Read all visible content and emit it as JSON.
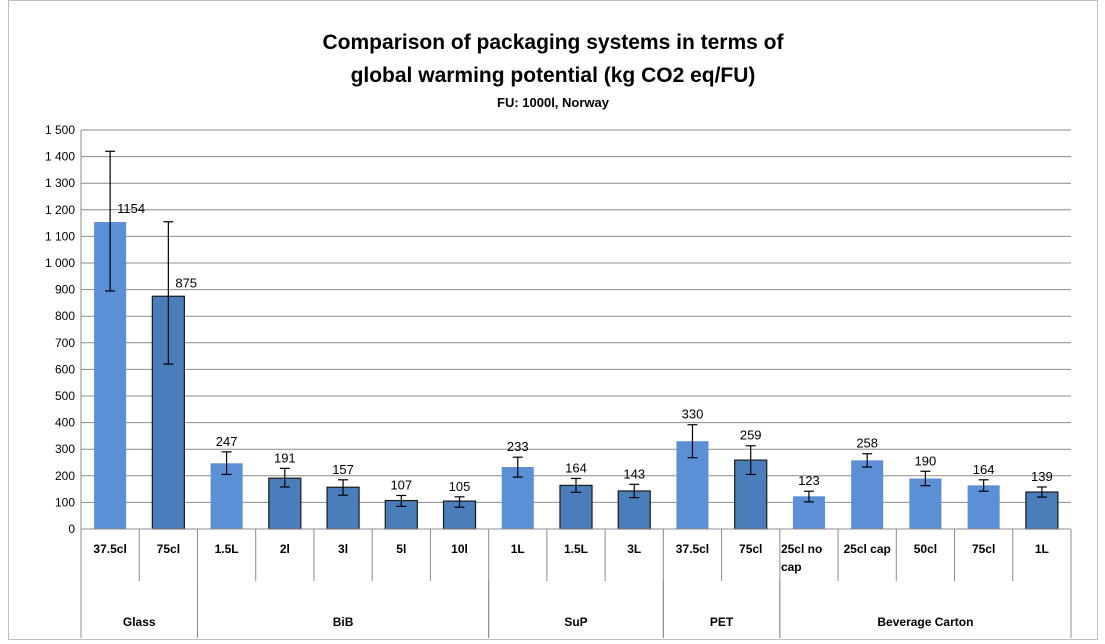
{
  "chart_data": {
    "type": "bar",
    "title_line1": "Comparison of packaging systems in terms of",
    "title_line2": "global warming potential (kg CO2 eq/FU)",
    "subtitle": "FU: 1000l,  Norway",
    "xlabel": "",
    "ylabel": "",
    "ylim": [
      0,
      1500
    ],
    "yticks": [
      0,
      100,
      200,
      300,
      400,
      500,
      600,
      700,
      800,
      900,
      1000,
      1100,
      1200,
      1300,
      1400,
      1500
    ],
    "ytick_labels": [
      "0",
      "100",
      "200",
      "300",
      "400",
      "500",
      "600",
      "700",
      "800",
      "900",
      "1 000",
      "1 100",
      "1 200",
      "1 300",
      "1 400",
      "1 500"
    ],
    "grid": true,
    "legend": "none",
    "colors": {
      "bar_light": "#5b8fd6",
      "bar_dark": "#4a7ebb",
      "outline": "#1a1a1a",
      "grid": "#8c8c8c",
      "text": "#000000"
    },
    "groups": [
      {
        "name": "Glass",
        "start": 0,
        "end": 1
      },
      {
        "name": "BiB",
        "start": 2,
        "end": 6
      },
      {
        "name": "SuP",
        "start": 7,
        "end": 9
      },
      {
        "name": "PET",
        "start": 10,
        "end": 11
      },
      {
        "name": "Beverage Carton",
        "start": 12,
        "end": 16
      }
    ],
    "bars": [
      {
        "group": "Glass",
        "label": [
          "37.5cl"
        ],
        "value": 1154,
        "err_low": 895,
        "err_high": 1420,
        "outlined": false
      },
      {
        "group": "Glass",
        "label": [
          "75cl"
        ],
        "value": 875,
        "err_low": 620,
        "err_high": 1155,
        "outlined": true
      },
      {
        "group": "BiB",
        "label": [
          "1.5L"
        ],
        "value": 247,
        "err_low": 205,
        "err_high": 290,
        "outlined": false
      },
      {
        "group": "BiB",
        "label": [
          "2l"
        ],
        "value": 191,
        "err_low": 158,
        "err_high": 228,
        "outlined": true
      },
      {
        "group": "BiB",
        "label": [
          "3l"
        ],
        "value": 157,
        "err_low": 127,
        "err_high": 185,
        "outlined": true
      },
      {
        "group": "BiB",
        "label": [
          "5l"
        ],
        "value": 107,
        "err_low": 85,
        "err_high": 126,
        "outlined": true
      },
      {
        "group": "BiB",
        "label": [
          "10l"
        ],
        "value": 105,
        "err_low": 82,
        "err_high": 121,
        "outlined": true
      },
      {
        "group": "SuP",
        "label": [
          "1L"
        ],
        "value": 233,
        "err_low": 195,
        "err_high": 270,
        "outlined": false
      },
      {
        "group": "SuP",
        "label": [
          "1.5L"
        ],
        "value": 164,
        "err_low": 138,
        "err_high": 190,
        "outlined": true
      },
      {
        "group": "SuP",
        "label": [
          "3L"
        ],
        "value": 143,
        "err_low": 118,
        "err_high": 168,
        "outlined": true
      },
      {
        "group": "PET",
        "label": [
          "37.5cl"
        ],
        "value": 330,
        "err_low": 268,
        "err_high": 392,
        "outlined": false
      },
      {
        "group": "PET",
        "label": [
          "75cl"
        ],
        "value": 259,
        "err_low": 205,
        "err_high": 313,
        "outlined": true
      },
      {
        "group": "Beverage Carton",
        "label": [
          "25cl no",
          "cap"
        ],
        "value": 123,
        "err_low": 102,
        "err_high": 142,
        "outlined": false
      },
      {
        "group": "Beverage Carton",
        "label": [
          "25cl cap"
        ],
        "value": 258,
        "err_low": 233,
        "err_high": 283,
        "outlined": false
      },
      {
        "group": "Beverage Carton",
        "label": [
          "50cl"
        ],
        "value": 190,
        "err_low": 163,
        "err_high": 217,
        "outlined": false
      },
      {
        "group": "Beverage Carton",
        "label": [
          "75cl"
        ],
        "value": 164,
        "err_low": 142,
        "err_high": 185,
        "outlined": false
      },
      {
        "group": "Beverage Carton",
        "label": [
          "1L"
        ],
        "value": 139,
        "err_low": 120,
        "err_high": 158,
        "outlined": true
      }
    ]
  }
}
